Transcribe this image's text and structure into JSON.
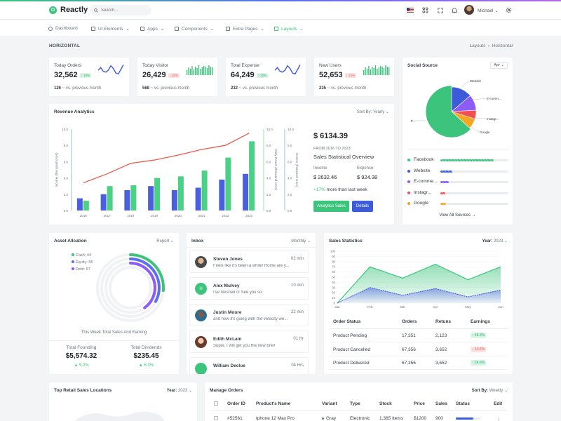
{
  "app": {
    "name": "Reactly"
  },
  "topbar": {
    "search_placeholder": "Search...",
    "user_name": "Michael"
  },
  "nav": [
    {
      "label": "Dashboard"
    },
    {
      "label": "UI Elements"
    },
    {
      "label": "Apps"
    },
    {
      "label": "Components"
    },
    {
      "label": "Extra Pages"
    },
    {
      "label": "Layouts"
    }
  ],
  "page": {
    "title": "HORIZONTAL",
    "crumb_parent": "Layouts",
    "crumb_current": "Horizontal"
  },
  "stats": [
    {
      "label": "Today Orders",
      "value": "32,562",
      "change": "10%",
      "direction": "up",
      "foot_value": "126",
      "foot_text": "vs. previous month",
      "chart": "line"
    },
    {
      "label": "Today Visitor",
      "value": "26,429",
      "change": "33%",
      "direction": "down",
      "foot_value": "568",
      "foot_text": "vs. previous month",
      "chart": "bar"
    },
    {
      "label": "Total Expense",
      "value": "64,249",
      "change": "32%",
      "direction": "up",
      "foot_value": "232",
      "foot_text": "vs. previous month",
      "chart": "line"
    },
    {
      "label": "New Users",
      "value": "52,653",
      "change": "12%",
      "direction": "down",
      "foot_value": "235",
      "foot_text": "vs. previous month",
      "chart": "bar"
    }
  ],
  "revenue": {
    "title": "Revenue Analytics",
    "sort_label": "Sort By:",
    "sort_value": "Yearly",
    "total": "$ 6134.39",
    "period": "FROM 2016 TO 2023",
    "subtitle": "Sales Statistical Overview",
    "income_label": "Income",
    "income_value": "$ 2632.46",
    "expense_label": "Expense",
    "expense_value": "$ 924.38",
    "change": "+17%",
    "change_text": "more than last week",
    "btn_primary": "Analytics Sales",
    "btn_secondary": "Details"
  },
  "social": {
    "title": "Social Source",
    "filter": "Apr",
    "view_all": "View All Sources",
    "items": [
      {
        "name": "Facebook",
        "color": "#3cc47c",
        "value": 55
      },
      {
        "name": "Website",
        "color": "#3b5bdb",
        "value": 12
      },
      {
        "name": "E-comme...",
        "color": "#8b5cf6",
        "value": 9
      },
      {
        "name": "Instagr...",
        "color": "#f05050",
        "value": 5
      },
      {
        "name": "Google",
        "color": "#f5a623",
        "value": 6
      }
    ],
    "pie_labels": [
      "Website",
      "E-comm...",
      "Instagr...",
      "Google",
      "F..."
    ]
  },
  "asset": {
    "title": "Asset Allcation",
    "filter": "Report",
    "legend": [
      {
        "label": "Cash: 44",
        "color": "#3cc47c",
        "value": 44
      },
      {
        "label": "Equity: 55",
        "color": "#5b6ff0",
        "value": 55
      },
      {
        "label": "Debt: 67",
        "color": "#8b5cf6",
        "value": 67
      }
    ],
    "caption": "This Week Total Sales And Earning",
    "founding_label": "Total Founding",
    "founding_value": "$5,574.32",
    "founding_change": "9.2%",
    "dividends_label": "Total Dividends",
    "dividends_value": "$235.45",
    "dividends_change": "6.3%"
  },
  "inbox": {
    "title": "Inbox",
    "filter": "Monthly",
    "items": [
      {
        "name": "Steven Jones",
        "msg": "Feels like it's been a while! Home are y...",
        "time": "02 min"
      },
      {
        "name": "Alex Mulvey",
        "msg": "I've finished it! See you so",
        "time": "10 min",
        "initial": "H"
      },
      {
        "name": "Justin Moore",
        "msg": "and how it's going with the velocity we...",
        "time": "22 min"
      },
      {
        "name": "Edith McLain",
        "msg": "Super, I will get you the new brief",
        "time": "01 Hr"
      },
      {
        "name": "William Declue",
        "msg": "",
        "time": "04 Hrs"
      }
    ]
  },
  "sales_stats": {
    "title": "Sales Statistics",
    "year_label": "Year:",
    "year_value": "2023",
    "headers": [
      "Order Status",
      "Orders",
      "Retuns",
      "Earnings"
    ],
    "rows": [
      {
        "status": "Product Pending",
        "orders": "17,351",
        "returns": "2,123",
        "earnings": "45.3%",
        "direction": "up"
      },
      {
        "status": "Product Cancelled",
        "orders": "67,356",
        "returns": "3,652",
        "earnings": "14.6%",
        "direction": "down"
      },
      {
        "status": "Product Delivered",
        "orders": "67,356",
        "returns": "3,652",
        "earnings": "14.6%",
        "direction": "up"
      }
    ]
  },
  "locations": {
    "title": "Top Retail Sales Locations",
    "year_label": "Year:",
    "year_value": "2023"
  },
  "orders": {
    "title": "Manage Orders",
    "sort_label": "Sort By:",
    "sort_value": "Weekly",
    "headers": [
      "Order ID",
      "Product's Name",
      "Variant",
      "Type",
      "Stock",
      "Price",
      "Sales",
      "Status",
      "Edit"
    ],
    "rows": [
      {
        "id": "#52561",
        "name": "Iphone 12 Max Pro",
        "variant": "Gray",
        "type": "Electronic",
        "stock": "1,365 Items",
        "price": "$1200",
        "sales": "900"
      }
    ]
  },
  "chart_data": [
    {
      "type": "bar",
      "title": "Revenue Analytics",
      "categories": [
        "2016",
        "2017",
        "2018",
        "2019",
        "2020",
        "2021",
        "2022",
        "2023"
      ],
      "ylim": [
        0,
        10
      ],
      "yticks": [
        "0.0",
        "2.0",
        "4.0",
        "6.0",
        "8.0",
        "10.0"
      ],
      "series": [
        {
          "name": "",
          "kind": "bar",
          "color": "#4a5fe0",
          "values": [
            1.5,
            2.0,
            2.5,
            3.0,
            2.5,
            2.8,
            3.8,
            4.5
          ]
        },
        {
          "name": "",
          "kind": "bar",
          "color": "#4cd085",
          "values": [
            1.2,
            3.0,
            3.1,
            4.0,
            4.2,
            4.9,
            6.5,
            8.5
          ]
        },
        {
          "name": "",
          "kind": "line",
          "color": "#e95b4b",
          "values": [
            3.4,
            4.5,
            5.8,
            6.2,
            6.8,
            7.5,
            8.0,
            9.5
          ]
        }
      ],
      "right_axis_labels": [
        "Daily Reach (thousand crore)",
        "Income (thousand crore)"
      ],
      "left_axis_label": "Income (thousand crore)"
    },
    {
      "type": "area",
      "title": "Sales Statistics",
      "categories": [
        "Jan",
        "Feb",
        "Mar",
        "Apr",
        "May",
        "Jun"
      ],
      "ylim": [
        0,
        100
      ],
      "yticks": [
        "0",
        "10",
        "20",
        "30",
        "40",
        "50",
        "60",
        "70",
        "80",
        "90",
        "100"
      ],
      "series": [
        {
          "name": "",
          "color": "#3cc47c",
          "values": [
            0,
            70,
            48,
            75,
            45,
            70
          ]
        },
        {
          "name": "",
          "color": "#4a5fe0",
          "values": [
            0,
            30,
            15,
            28,
            12,
            25
          ]
        }
      ]
    },
    {
      "type": "pie",
      "title": "Social Source",
      "labels": [
        "Facebook",
        "Website",
        "E-commerce",
        "Instagram",
        "Google"
      ],
      "values": [
        55,
        12,
        9,
        5,
        6
      ]
    }
  ]
}
